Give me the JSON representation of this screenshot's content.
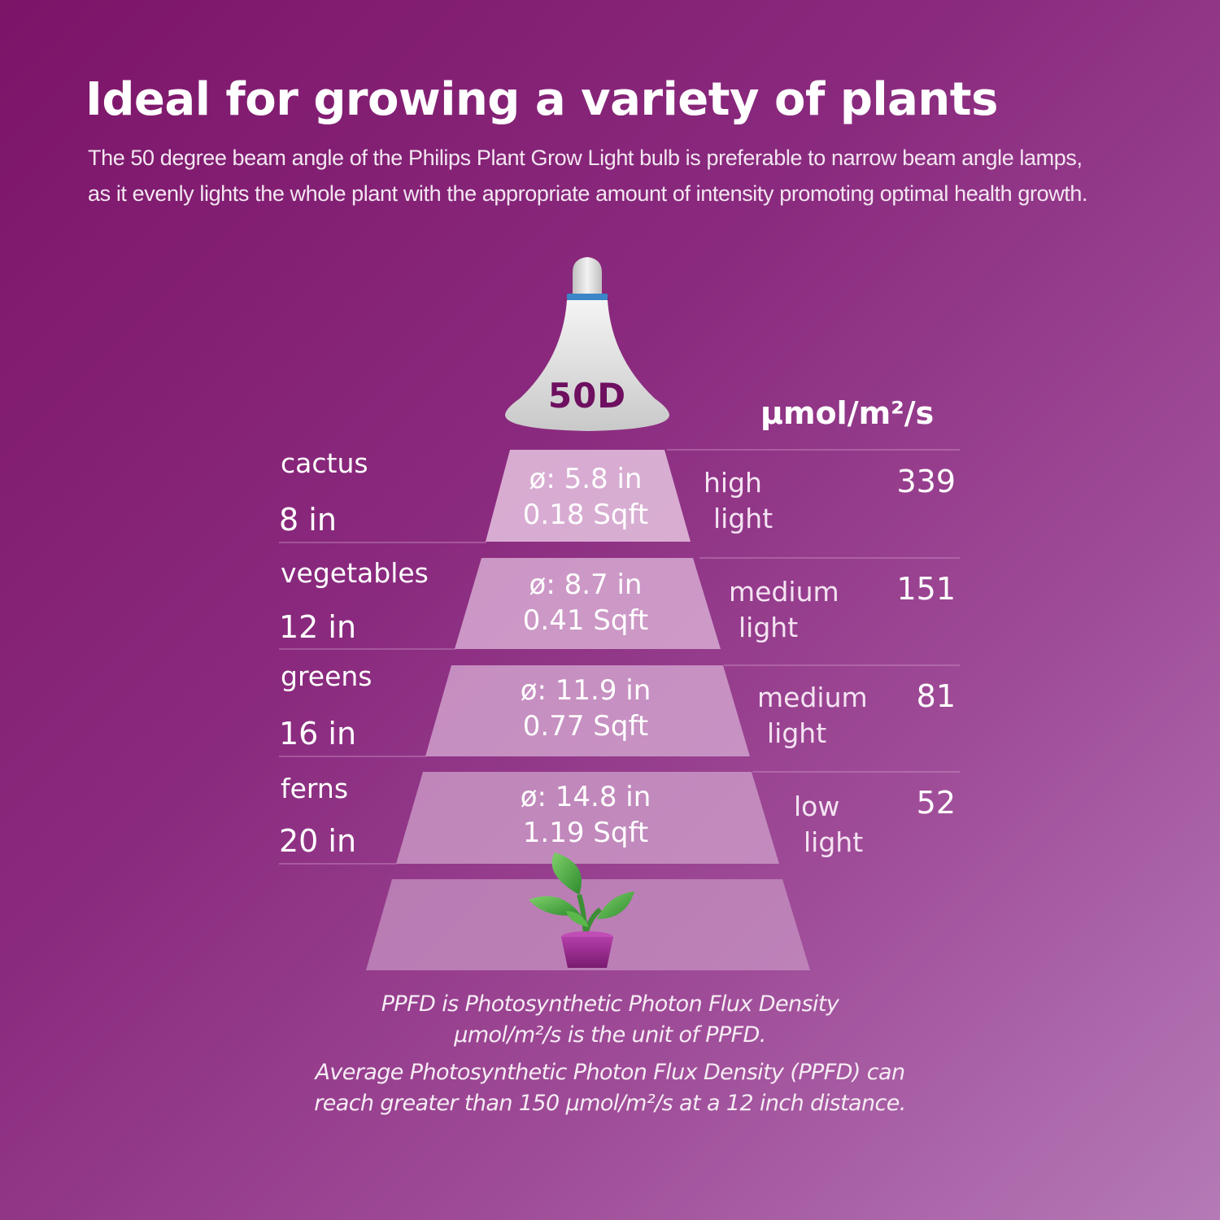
{
  "header": {
    "title": "Ideal for growing a variety of plants",
    "subtitle_lines": [
      "The 50 degree beam angle of the Philips Plant Grow Light bulb is preferable to narrow beam angle lamps,",
      "as it evenly lights the whole plant with the appropriate amount of intensity promoting optimal health growth."
    ]
  },
  "bulb": {
    "label": "50D"
  },
  "unit_header": "µmol/m²/s",
  "tiers": [
    {
      "plant": "cactus",
      "distance": "8 in",
      "diameter": "ø: 5.8 in",
      "area": "0.18 Sqft",
      "intensity_1": "high",
      "intensity_2": "light",
      "ppfd": "339"
    },
    {
      "plant": "vegetables",
      "distance": "12 in",
      "diameter": "ø: 8.7 in",
      "area": "0.41 Sqft",
      "intensity_1": "medium",
      "intensity_2": "light",
      "ppfd": "151"
    },
    {
      "plant": "greens",
      "distance": "16 in",
      "diameter": "ø: 11.9 in",
      "area": "0.77 Sqft",
      "intensity_1": "medium",
      "intensity_2": "light",
      "ppfd": "81"
    },
    {
      "plant": "ferns",
      "distance": "20 in",
      "diameter": "ø: 14.8 in",
      "area": "1.19 Sqft",
      "intensity_1": "low",
      "intensity_2": "light",
      "ppfd": "52"
    }
  ],
  "notes": {
    "line1": "PPFD is Photosynthetic Photon Flux Density",
    "line2": "µmol/m²/s is the unit of PPFD.",
    "line3": "Average Photosynthetic Photon Flux Density (PPFD) can",
    "line4": "reach greater than 150 µmol/m²/s at a 12 inch distance."
  },
  "colors": {
    "background_start": "#7c1468",
    "background_end": "#b57ab7",
    "bulb_text": "#6e0f60",
    "bulb_band": "#3a86c8",
    "leaf": "#4caa3c",
    "pot": "#9a2a8e"
  }
}
